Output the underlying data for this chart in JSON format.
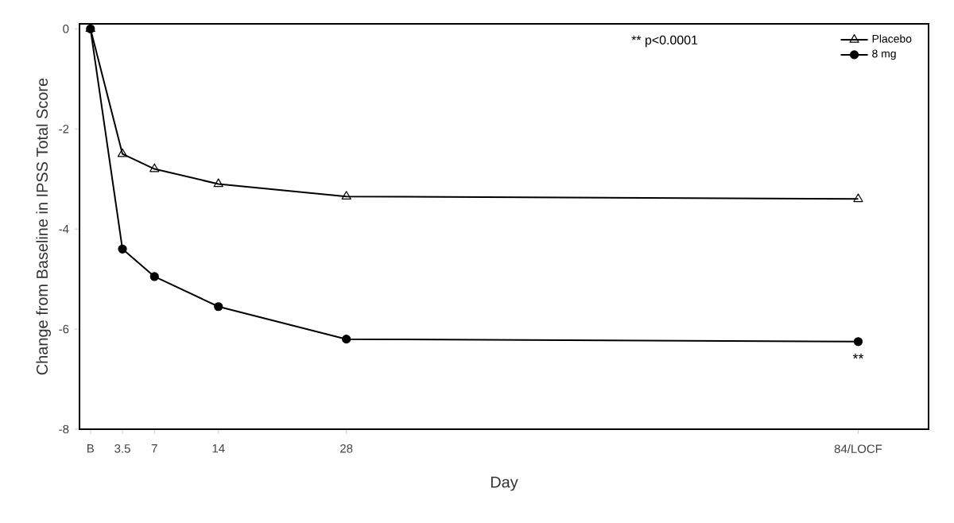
{
  "chart_data": {
    "type": "line",
    "xlabel": "Day",
    "ylabel": "Change from Baseline in IPSS Total Score",
    "x": [
      0,
      3.5,
      7,
      14,
      28,
      84
    ],
    "xlim": [
      -1.2,
      91.7
    ],
    "xticks": [
      {
        "value": 0,
        "label": "B"
      },
      3.5,
      7,
      14,
      28,
      {
        "value": 84,
        "label": "84/LOCF"
      }
    ],
    "ylim": [
      -8,
      0.1
    ],
    "yticks": [
      0,
      -2,
      -4,
      -6,
      -8
    ],
    "series": [
      {
        "name": "Placebo",
        "color": "#000000",
        "marker": "triangle",
        "values": [
          0,
          -2.5,
          -2.8,
          -3.1,
          -3.35,
          -3.4
        ]
      },
      {
        "name": "8 mg",
        "color": "#000000",
        "marker": "circle",
        "values": [
          0,
          -4.4,
          -4.95,
          -5.55,
          -6.2,
          -6.25
        ]
      }
    ],
    "annotations": [
      "** p<0.0001",
      {
        "text": "**",
        "x": 84,
        "y": -6.25
      }
    ],
    "legend": "top right",
    "grid": false,
    "line_style": "solid"
  }
}
